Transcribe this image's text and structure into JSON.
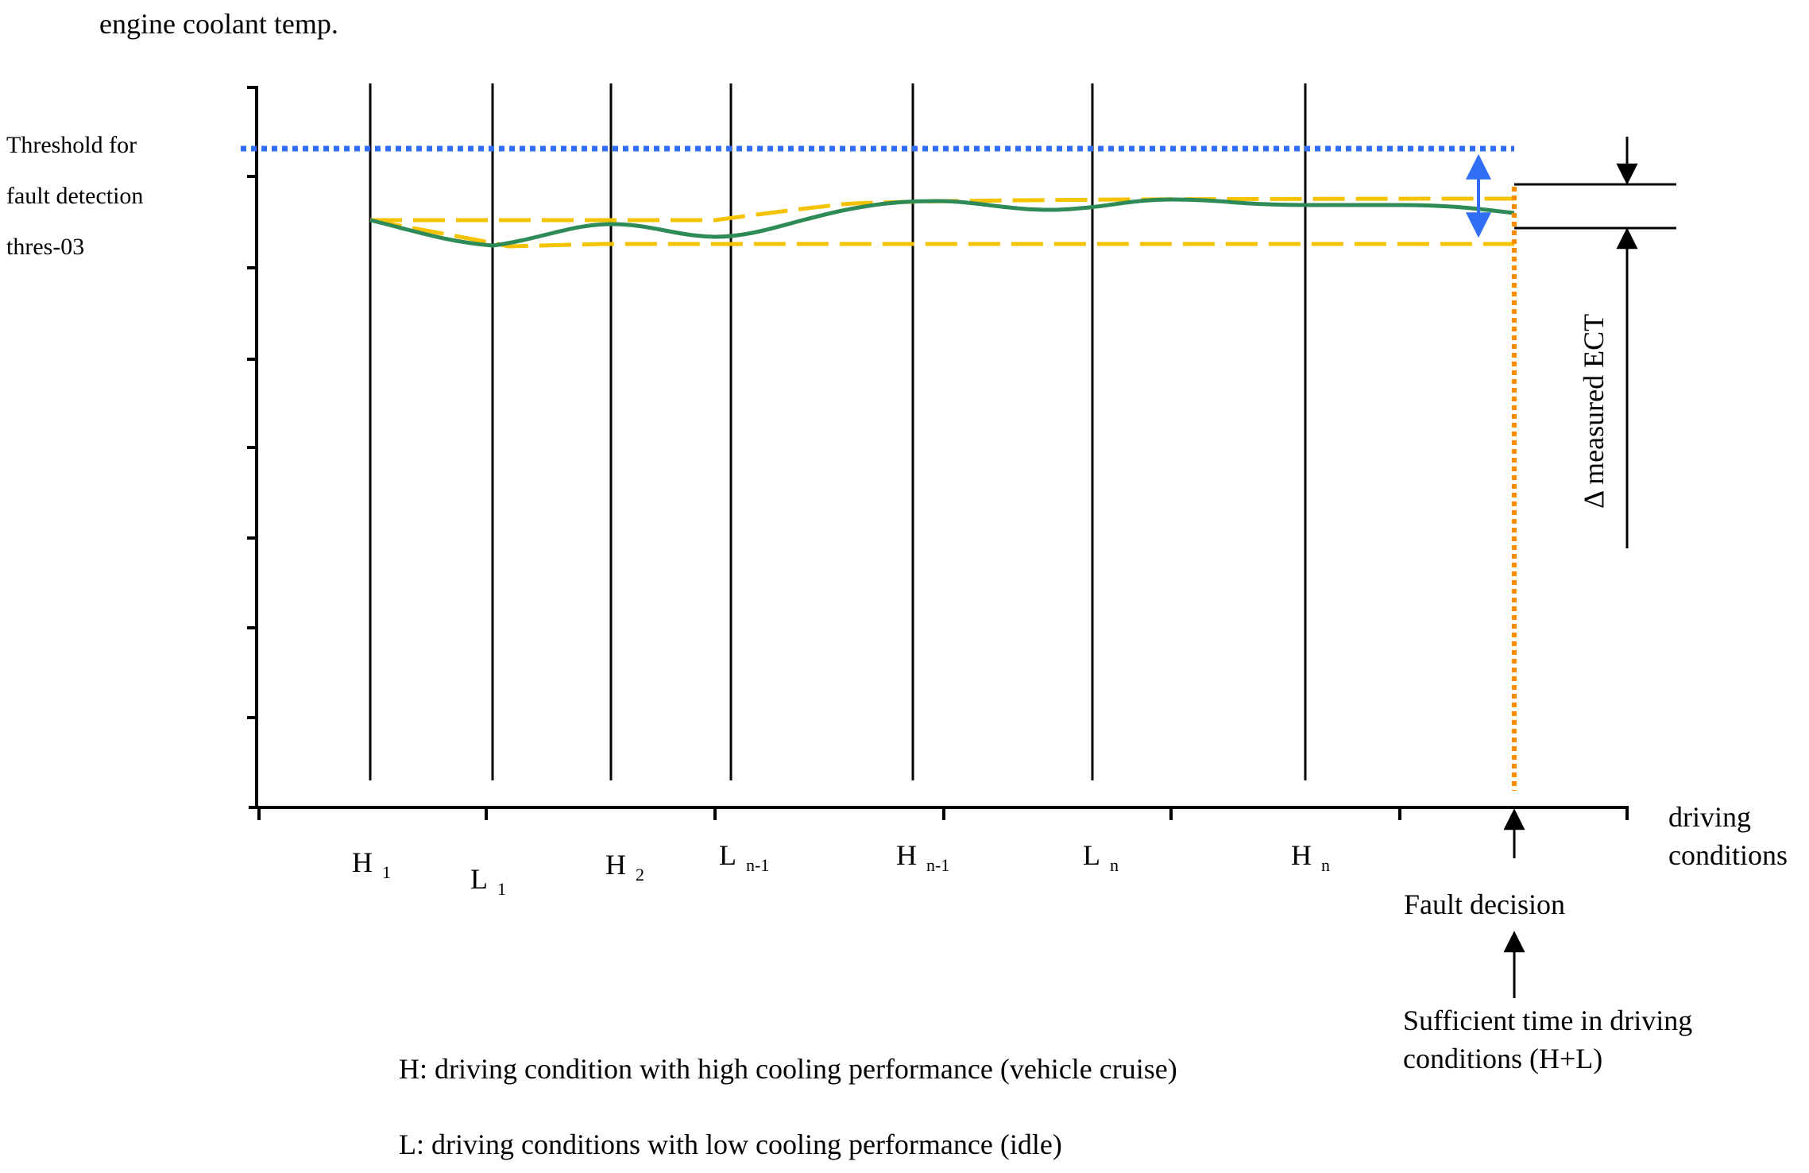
{
  "y_axis_label": "engine coolant temp.",
  "threshold_label": {
    "line1": "Threshold for",
    "line2": "fault detection",
    "line3": "thres-03"
  },
  "x_axis_label": {
    "line1": "driving",
    "line2": "conditions"
  },
  "conditions": [
    {
      "letter": "H",
      "sub": "1"
    },
    {
      "letter": "L",
      "sub": "1"
    },
    {
      "letter": "H",
      "sub": "2"
    },
    {
      "letter": "L",
      "sub": "n-1"
    },
    {
      "letter": "H",
      "sub": "n-1"
    },
    {
      "letter": "L",
      "sub": "n"
    },
    {
      "letter": "H",
      "sub": "n"
    }
  ],
  "delta_label": "Δ measured ECT",
  "fault_decision_label": "Fault decision",
  "sufficient_time_label": {
    "line1": "Sufficient time in driving",
    "line2": "conditions (H+L)"
  },
  "legend": {
    "h_line": "H: driving condition with high cooling performance (vehicle cruise)",
    "l_line": "L: driving conditions with low cooling performance (idle)"
  },
  "colors": {
    "threshold": "#2f6ef5",
    "measured_curve": "#2e8b57",
    "band": "#f5c200",
    "fault_line": "#ff8c00",
    "axis": "#000000"
  }
}
